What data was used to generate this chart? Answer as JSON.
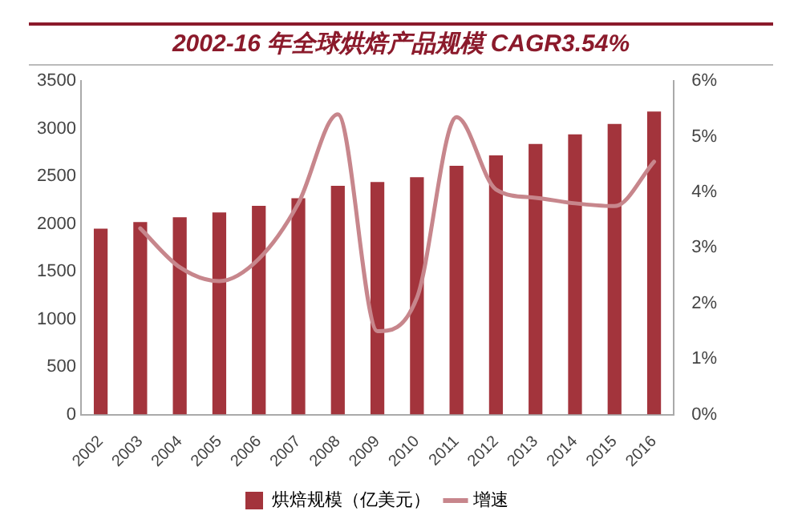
{
  "chart_data": {
    "type": "bar",
    "title": "2002-16 年全球烘焙产品规模 CAGR3.54%",
    "categories": [
      "2002",
      "2003",
      "2004",
      "2005",
      "2006",
      "2007",
      "2008",
      "2009",
      "2010",
      "2011",
      "2012",
      "2013",
      "2014",
      "2015",
      "2016"
    ],
    "series": [
      {
        "name": "烘焙规模（亿美元）",
        "color": "#a3343c",
        "values": [
          1950,
          2020,
          2070,
          2120,
          2190,
          2270,
          2400,
          2440,
          2490,
          2610,
          2720,
          2840,
          2940,
          3050,
          3180
        ]
      },
      {
        "name": "增速",
        "type": "line",
        "axis": "y2",
        "color": "#c7868c",
        "values": [
          null,
          3.35,
          2.65,
          2.4,
          2.8,
          3.8,
          5.4,
          1.5,
          2.1,
          5.35,
          4.05,
          3.9,
          3.8,
          3.75,
          4.55
        ]
      }
    ],
    "ylim": [
      0,
      3500
    ],
    "yticks": [
      0,
      500,
      1000,
      1500,
      2000,
      2500,
      3000,
      3500
    ],
    "y2lim": [
      0,
      6
    ],
    "y2ticks": [
      {
        "value": 0,
        "label": "0%"
      },
      {
        "value": 1,
        "label": "1%"
      },
      {
        "value": 2,
        "label": "2%"
      },
      {
        "value": 3,
        "label": "3%"
      },
      {
        "value": 4,
        "label": "4%"
      },
      {
        "value": 5,
        "label": "5%"
      },
      {
        "value": 6,
        "label": "6%"
      }
    ],
    "grid": false,
    "legend": "bottom",
    "marker": "none",
    "line_style": "solid"
  }
}
